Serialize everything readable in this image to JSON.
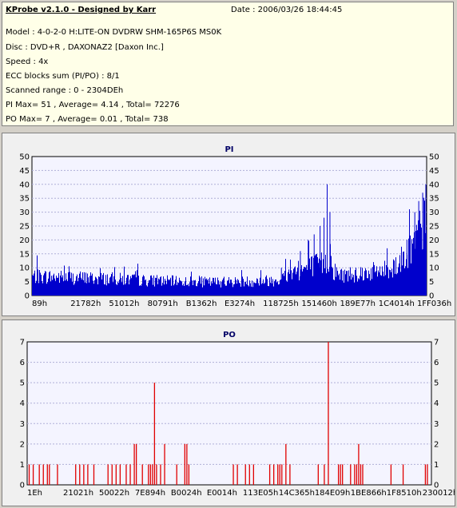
{
  "info": {
    "app_title": "KProbe v2.1.0 - Designed by Karr",
    "date": "Date : 2006/03/26 18:44:45",
    "model": "Model : 4-0-2-0 H:LITE-ON DVDRW SHM-165P6S MS0K",
    "disc": "Disc : DVD+R , DAXONAZ2 [Daxon Inc.]",
    "speed": "Speed : 4x",
    "ecc": "ECC blocks sum (PI/PO) : 8/1",
    "range": "Scanned range : 0 - 2304DEh",
    "pi_stats": "PI Max= 51 , Average= 4.14 , Total= 72276",
    "po_stats": "PO Max= 7 , Average= 0.01 , Total= 738"
  },
  "chart_data": [
    {
      "type": "bar",
      "title": "PI",
      "ylim": [
        0,
        50
      ],
      "yticks": [
        0,
        5,
        10,
        15,
        20,
        25,
        30,
        35,
        40,
        45,
        50
      ],
      "xtick_labels": [
        "89h",
        "21782h",
        "51012h",
        "80791h",
        "B1362h",
        "E3274h",
        "118725h",
        "151460h",
        "189E77h",
        "1C4014h",
        "1FF036h"
      ],
      "grid": true,
      "color": "#0000cc",
      "profile": [
        [
          0,
          7.5
        ],
        [
          0.1,
          7
        ],
        [
          0.2,
          6.5
        ],
        [
          0.3,
          5.8
        ],
        [
          0.45,
          5.2
        ],
        [
          0.55,
          5.5
        ],
        [
          0.62,
          6
        ],
        [
          0.66,
          9
        ],
        [
          0.7,
          11
        ],
        [
          0.75,
          13
        ],
        [
          0.755,
          17
        ],
        [
          0.76,
          10
        ],
        [
          0.78,
          8
        ],
        [
          0.85,
          9
        ],
        [
          0.9,
          10
        ],
        [
          0.93,
          13
        ],
        [
          0.96,
          18
        ],
        [
          1.0,
          30
        ]
      ],
      "spikes": [
        {
          "x": 0.58,
          "value": 8
        },
        {
          "x": 0.632,
          "value": 10
        },
        {
          "x": 0.68,
          "value": 16
        },
        {
          "x": 0.7,
          "value": 20
        },
        {
          "x": 0.715,
          "value": 22
        },
        {
          "x": 0.73,
          "value": 25
        },
        {
          "x": 0.74,
          "value": 28
        },
        {
          "x": 0.748,
          "value": 40
        },
        {
          "x": 0.755,
          "value": 30
        },
        {
          "x": 0.9,
          "value": 17
        },
        {
          "x": 0.95,
          "value": 20
        },
        {
          "x": 0.97,
          "value": 30
        },
        {
          "x": 0.98,
          "value": 34
        },
        {
          "x": 0.99,
          "value": 37
        },
        {
          "x": 0.998,
          "value": 40
        }
      ]
    },
    {
      "type": "bar",
      "title": "PO",
      "ylim": [
        0,
        7
      ],
      "yticks": [
        0,
        1,
        2,
        3,
        4,
        5,
        6,
        7
      ],
      "xtick_labels": [
        "1Eh",
        "21021h",
        "50022h",
        "7E894h",
        "B0024h",
        "E0014h",
        "113E05h",
        "14C365h",
        "184E09h",
        "1BE866h",
        "1F8510h",
        "230012h"
      ],
      "grid": true,
      "color": "#e00000",
      "bars": [
        {
          "x": 0.005,
          "value": 1
        },
        {
          "x": 0.015,
          "value": 1
        },
        {
          "x": 0.03,
          "value": 1
        },
        {
          "x": 0.04,
          "value": 1
        },
        {
          "x": 0.05,
          "value": 1
        },
        {
          "x": 0.055,
          "value": 1
        },
        {
          "x": 0.075,
          "value": 1
        },
        {
          "x": 0.12,
          "value": 1
        },
        {
          "x": 0.13,
          "value": 1
        },
        {
          "x": 0.14,
          "value": 1
        },
        {
          "x": 0.15,
          "value": 1
        },
        {
          "x": 0.165,
          "value": 1
        },
        {
          "x": 0.2,
          "value": 1
        },
        {
          "x": 0.21,
          "value": 1
        },
        {
          "x": 0.22,
          "value": 1
        },
        {
          "x": 0.23,
          "value": 1
        },
        {
          "x": 0.245,
          "value": 1
        },
        {
          "x": 0.255,
          "value": 1
        },
        {
          "x": 0.265,
          "value": 2
        },
        {
          "x": 0.27,
          "value": 2
        },
        {
          "x": 0.285,
          "value": 1
        },
        {
          "x": 0.3,
          "value": 1
        },
        {
          "x": 0.305,
          "value": 1
        },
        {
          "x": 0.31,
          "value": 1
        },
        {
          "x": 0.315,
          "value": 5
        },
        {
          "x": 0.32,
          "value": 1
        },
        {
          "x": 0.33,
          "value": 1
        },
        {
          "x": 0.34,
          "value": 2
        },
        {
          "x": 0.37,
          "value": 1
        },
        {
          "x": 0.39,
          "value": 2
        },
        {
          "x": 0.395,
          "value": 2
        },
        {
          "x": 0.4,
          "value": 1
        },
        {
          "x": 0.51,
          "value": 1
        },
        {
          "x": 0.52,
          "value": 1
        },
        {
          "x": 0.54,
          "value": 1
        },
        {
          "x": 0.55,
          "value": 1
        },
        {
          "x": 0.56,
          "value": 1
        },
        {
          "x": 0.6,
          "value": 1
        },
        {
          "x": 0.61,
          "value": 1
        },
        {
          "x": 0.62,
          "value": 1
        },
        {
          "x": 0.625,
          "value": 1
        },
        {
          "x": 0.63,
          "value": 1
        },
        {
          "x": 0.64,
          "value": 2
        },
        {
          "x": 0.65,
          "value": 1
        },
        {
          "x": 0.72,
          "value": 1
        },
        {
          "x": 0.735,
          "value": 1
        },
        {
          "x": 0.745,
          "value": 7
        },
        {
          "x": 0.77,
          "value": 1
        },
        {
          "x": 0.775,
          "value": 1
        },
        {
          "x": 0.78,
          "value": 1
        },
        {
          "x": 0.8,
          "value": 1
        },
        {
          "x": 0.81,
          "value": 1
        },
        {
          "x": 0.815,
          "value": 1
        },
        {
          "x": 0.82,
          "value": 2
        },
        {
          "x": 0.825,
          "value": 1
        },
        {
          "x": 0.83,
          "value": 1
        },
        {
          "x": 0.9,
          "value": 1
        },
        {
          "x": 0.93,
          "value": 1
        },
        {
          "x": 0.985,
          "value": 1
        },
        {
          "x": 0.99,
          "value": 1
        }
      ]
    }
  ]
}
